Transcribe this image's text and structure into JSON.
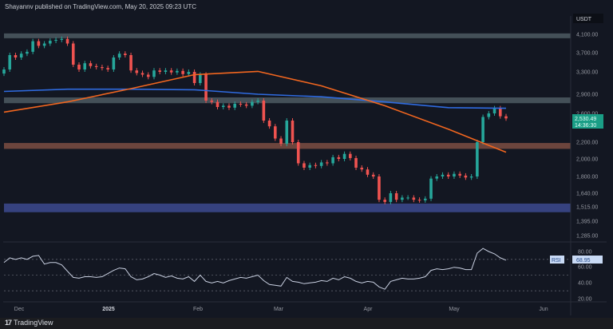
{
  "header": {
    "published": "Shayannv published on TradingView.com, May 20, 2025 09:23 UTC"
  },
  "footer": {
    "brand": "TradingView",
    "logo_mark": "17"
  },
  "colors": {
    "background": "#131722",
    "up": "#26a69a",
    "down": "#ef5350",
    "ma_blue": "#2f6be0",
    "ma_orange": "#f2661f",
    "rsi": "#c8cfe0",
    "band_gray": "#4d5b62",
    "band_brown": "#7d4d42",
    "band_blue": "#3d4a8f"
  },
  "price_axis": {
    "currency": "USDT",
    "ticks": [
      "4,100.00",
      "3,700.00",
      "3,300.00",
      "2,900.00",
      "2,600.00",
      "2,200.00",
      "2,000.00",
      "1,800.00",
      "1,640.00",
      "1,515.00",
      "1,395.00",
      "1,285.00"
    ],
    "last_price": "2,530.49",
    "countdown": "14:36:30"
  },
  "rsi_axis": {
    "ticks": [
      "80.00",
      "60.00",
      "40.00",
      "20.00"
    ],
    "label": "RSI",
    "value": "68.95"
  },
  "time_axis": {
    "ticks": [
      "Dec",
      "2025",
      "Feb",
      "Mar",
      "Apr",
      "May",
      "Jun"
    ]
  },
  "chart_data": {
    "type": "candlestick",
    "symbol_quote": "USDT",
    "interval_days_approx": 2,
    "closes": [
      3350,
      3650,
      3600,
      3680,
      3720,
      3950,
      3850,
      3900,
      3960,
      3980,
      4000,
      3900,
      3450,
      3350,
      3480,
      3420,
      3400,
      3380,
      3350,
      3600,
      3680,
      3650,
      3330,
      3280,
      3250,
      3210,
      3330,
      3300,
      3330,
      3290,
      3320,
      3260,
      3300,
      3100,
      3250,
      2800,
      2780,
      2700,
      2720,
      2690,
      2750,
      2740,
      2720,
      2780,
      2800,
      2500,
      2420,
      2250,
      2180,
      2500,
      2200,
      1950,
      1900,
      1930,
      1920,
      1960,
      1950,
      2020,
      2000,
      2060,
      2010,
      1900,
      1880,
      1820,
      1800,
      1580,
      1560,
      1640,
      1580,
      1600,
      1600,
      1580,
      1575,
      1590,
      1780,
      1800,
      1820,
      1800,
      1830,
      1810,
      1790,
      1800,
      2200,
      2550,
      2600,
      2680,
      2560,
      2530
    ],
    "ma_200": {
      "at_candle": [
        0,
        11,
        22,
        33,
        44,
        55,
        66,
        77,
        87
      ],
      "values": [
        2950,
        2990,
        2990,
        2980,
        2900,
        2860,
        2780,
        2690,
        2680
      ]
    },
    "ma_100": {
      "at_candle": [
        0,
        11,
        22,
        33,
        44,
        55,
        66,
        77,
        82,
        87
      ],
      "values": [
        2620,
        2780,
        3000,
        3250,
        3310,
        3050,
        2720,
        2380,
        2220,
        2080
      ]
    },
    "zones": [
      {
        "name": "resistance-4100",
        "low": 4020,
        "high": 4120,
        "color": "#4d5b62"
      },
      {
        "name": "resistance-2800",
        "low": 2760,
        "high": 2850,
        "color": "#4d5b62"
      },
      {
        "name": "support-2150",
        "low": 2120,
        "high": 2190,
        "color": "#7d4d42"
      },
      {
        "name": "support-1500",
        "low": 1470,
        "high": 1545,
        "color": "#3d4a8f"
      }
    ],
    "rsi": [
      66,
      72,
      70,
      72,
      70,
      74,
      75,
      64,
      66,
      66,
      63,
      55,
      47,
      46,
      48,
      48,
      47,
      48,
      52,
      56,
      59,
      58,
      48,
      44,
      45,
      48,
      52,
      50,
      47,
      49,
      46,
      45,
      48,
      42,
      50,
      42,
      40,
      42,
      40,
      43,
      45,
      47,
      46,
      48,
      50,
      43,
      38,
      37,
      36,
      47,
      42,
      41,
      39,
      40,
      41,
      43,
      42,
      46,
      44,
      48,
      46,
      42,
      40,
      42,
      41,
      35,
      32,
      42,
      44,
      46,
      45,
      45,
      46,
      48,
      56,
      58,
      57,
      58,
      60,
      59,
      57,
      57,
      78,
      84,
      80,
      77,
      72,
      69
    ],
    "rsi_levels": [
      70,
      50,
      30
    ],
    "grid": false
  }
}
